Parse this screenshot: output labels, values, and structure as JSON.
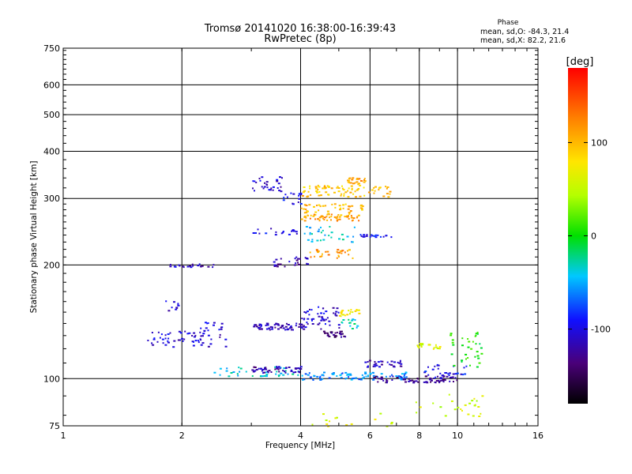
{
  "chart_data": {
    "type": "scatter",
    "title": "Tromsø 20141020 16:38:00-16:39:43",
    "subtitle": "RwPretec (8p)",
    "xlabel": "Frequency [MHz]",
    "ylabel": "Stationary phase Virtual Height [km]",
    "x_scale": "log",
    "y_scale": "log",
    "xlim": [
      1,
      16
    ],
    "ylim": [
      75,
      750
    ],
    "x_ticks": [
      1,
      2,
      4,
      6,
      8,
      10,
      16
    ],
    "y_ticks": [
      75,
      100,
      200,
      300,
      400,
      500,
      600,
      750
    ],
    "grid": true,
    "phase_info": {
      "heading": "Phase",
      "line_o": "mean, sd,O: -84.3, 21.4",
      "line_x": "mean, sd,X:  82.2, 21.6"
    },
    "colorbar": {
      "label": "[deg]",
      "range": [
        -180,
        180
      ],
      "ticks": [
        {
          "value": 100,
          "label": "100"
        },
        {
          "value": 0,
          "label": "0"
        },
        {
          "value": -100,
          "label": "-100"
        }
      ]
    },
    "traces": [
      {
        "x0": 1.6,
        "x1": 2.6,
        "y": 128,
        "phase": -105,
        "n": 60,
        "jit": 0.05
      },
      {
        "x0": 2.2,
        "x1": 2.6,
        "y": 138,
        "phase": -100,
        "n": 14,
        "jit": 0.03
      },
      {
        "x0": 1.8,
        "x1": 1.95,
        "y": 155,
        "phase": -105,
        "n": 10,
        "jit": 0.04
      },
      {
        "x0": 1.85,
        "x1": 2.45,
        "y": 200,
        "phase": -110,
        "n": 20,
        "jit": 0.01
      },
      {
        "x0": 2.4,
        "x1": 4.0,
        "y": 105,
        "phase": -40,
        "n": 40,
        "jit": 0.03
      },
      {
        "x0": 3.0,
        "x1": 4.0,
        "y": 106,
        "phase": -120,
        "n": 50,
        "jit": 0.02
      },
      {
        "x0": 4.0,
        "x1": 7.5,
        "y": 102,
        "phase": -60,
        "n": 90,
        "jit": 0.025
      },
      {
        "x0": 6.0,
        "x1": 10.0,
        "y": 100,
        "phase": -130,
        "n": 70,
        "jit": 0.02
      },
      {
        "x0": 8.0,
        "x1": 10.5,
        "y": 105,
        "phase": -95,
        "n": 30,
        "jit": 0.05
      },
      {
        "x0": 3.0,
        "x1": 4.1,
        "y": 138,
        "phase": -115,
        "n": 60,
        "jit": 0.02
      },
      {
        "x0": 4.0,
        "x1": 5.0,
        "y": 145,
        "phase": -105,
        "n": 50,
        "jit": 0.07
      },
      {
        "x0": 4.5,
        "x1": 5.2,
        "y": 132,
        "phase": -135,
        "n": 30,
        "jit": 0.02
      },
      {
        "x0": 5.0,
        "x1": 5.7,
        "y": 150,
        "phase": 75,
        "n": 20,
        "jit": 0.02
      },
      {
        "x0": 5.0,
        "x1": 5.6,
        "y": 140,
        "phase": -30,
        "n": 15,
        "jit": 0.03
      },
      {
        "x0": 5.8,
        "x1": 7.2,
        "y": 110,
        "phase": -115,
        "n": 30,
        "jit": 0.02
      },
      {
        "x0": 7.8,
        "x1": 9.0,
        "y": 122,
        "phase": 60,
        "n": 20,
        "jit": 0.02
      },
      {
        "x0": 9.5,
        "x1": 11.5,
        "y": 120,
        "phase": 0,
        "n": 35,
        "jit": 0.12
      },
      {
        "x0": 3.0,
        "x1": 3.6,
        "y": 328,
        "phase": -110,
        "n": 30,
        "jit": 0.05
      },
      {
        "x0": 3.6,
        "x1": 4.0,
        "y": 300,
        "phase": -100,
        "n": 15,
        "jit": 0.04
      },
      {
        "x0": 4.0,
        "x1": 6.8,
        "y": 315,
        "phase": 95,
        "n": 80,
        "jit": 0.035
      },
      {
        "x0": 5.2,
        "x1": 5.9,
        "y": 335,
        "phase": 110,
        "n": 25,
        "jit": 0.02
      },
      {
        "x0": 4.0,
        "x1": 5.8,
        "y": 280,
        "phase": 100,
        "n": 60,
        "jit": 0.04
      },
      {
        "x0": 4.0,
        "x1": 5.6,
        "y": 268,
        "phase": 115,
        "n": 40,
        "jit": 0.02
      },
      {
        "x0": 3.0,
        "x1": 3.9,
        "y": 246,
        "phase": -100,
        "n": 20,
        "jit": 0.02
      },
      {
        "x0": 4.0,
        "x1": 5.5,
        "y": 242,
        "phase": -40,
        "n": 30,
        "jit": 0.05
      },
      {
        "x0": 5.6,
        "x1": 6.8,
        "y": 240,
        "phase": -90,
        "n": 20,
        "jit": 0.01
      },
      {
        "x0": 3.4,
        "x1": 4.2,
        "y": 205,
        "phase": -120,
        "n": 25,
        "jit": 0.03
      },
      {
        "x0": 4.2,
        "x1": 5.5,
        "y": 215,
        "phase": 115,
        "n": 30,
        "jit": 0.03
      },
      {
        "x0": 4.0,
        "x1": 7.5,
        "y": 78,
        "phase": 60,
        "n": 15,
        "jit": 0.04
      },
      {
        "x0": 7.8,
        "x1": 11.5,
        "y": 85,
        "phase": 55,
        "n": 25,
        "jit": 0.07
      }
    ]
  }
}
